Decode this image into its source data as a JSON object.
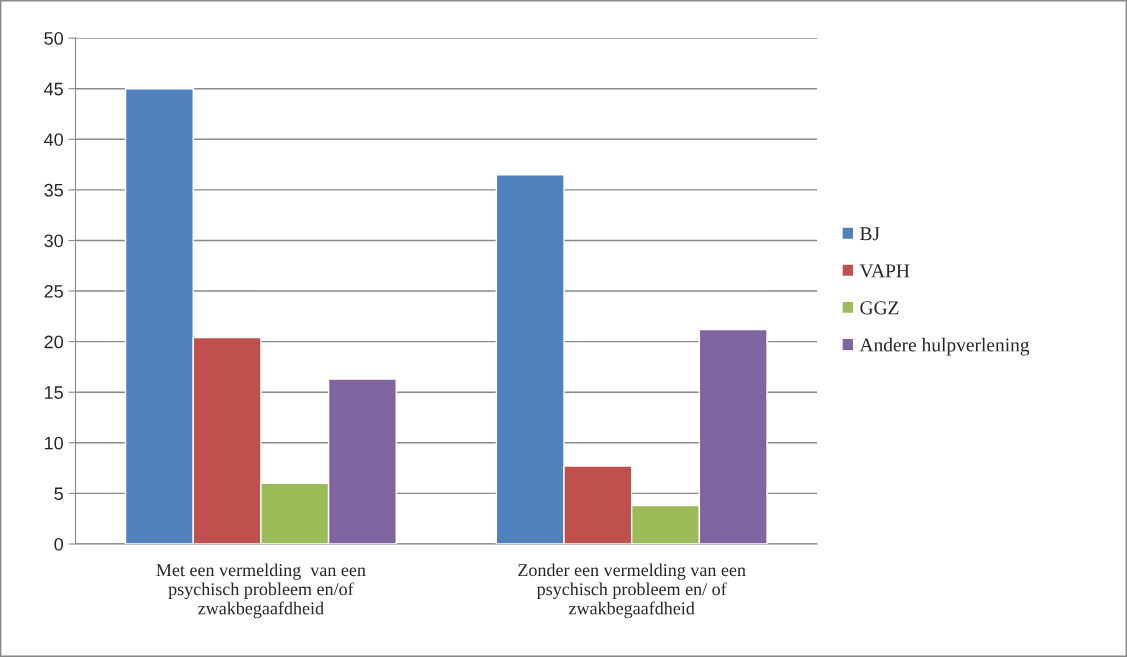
{
  "chart_data": {
    "type": "bar",
    "categories": [
      "Met een vermelding  van een\npsychisch probleem en/of\nzwakbegaafdheid",
      "Zonder een vermelding van een\npsychisch probleem en/ of\nzwakbegaafdheid"
    ],
    "series": [
      {
        "name": "BJ",
        "color": "#4f81bd",
        "values": [
          45.0,
          36.5
        ]
      },
      {
        "name": "VAPH",
        "color": "#c0504d",
        "values": [
          20.4,
          7.7
        ]
      },
      {
        "name": "GGZ",
        "color": "#9bbb59",
        "values": [
          6.0,
          3.8
        ]
      },
      {
        "name": "Andere hulpverlening",
        "color": "#8064a2",
        "values": [
          16.3,
          21.2
        ]
      }
    ],
    "ylim": [
      0,
      50
    ],
    "yticks": [
      0,
      5,
      10,
      15,
      20,
      25,
      30,
      35,
      40,
      45,
      50
    ],
    "grid": "y",
    "legend": "right"
  }
}
